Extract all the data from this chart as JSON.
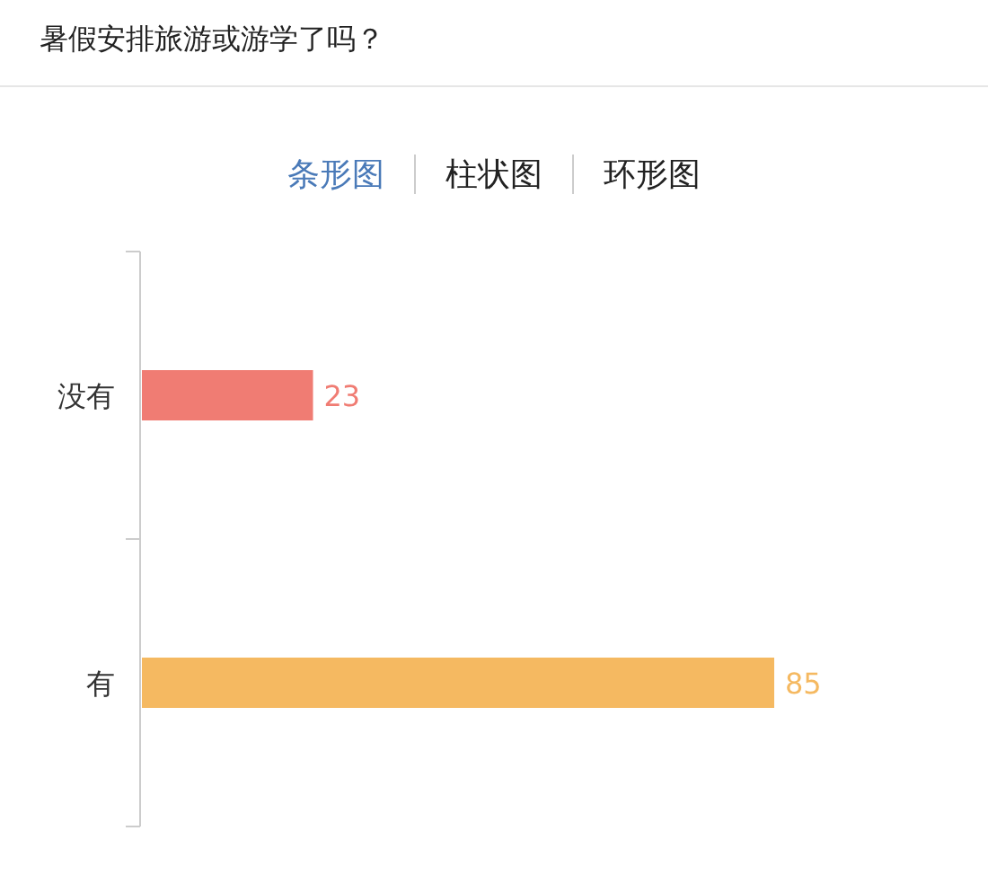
{
  "chart_data": {
    "type": "bar",
    "orientation": "horizontal",
    "title": "暑假安排旅游或游学了吗？",
    "annotations": [
      "条形图",
      "柱状图",
      "环形图"
    ],
    "categories": [
      "没有",
      "有"
    ],
    "values": [
      23,
      85
    ],
    "colors": [
      "#f07c73",
      "#f5b961"
    ],
    "data_labels": true
  }
}
